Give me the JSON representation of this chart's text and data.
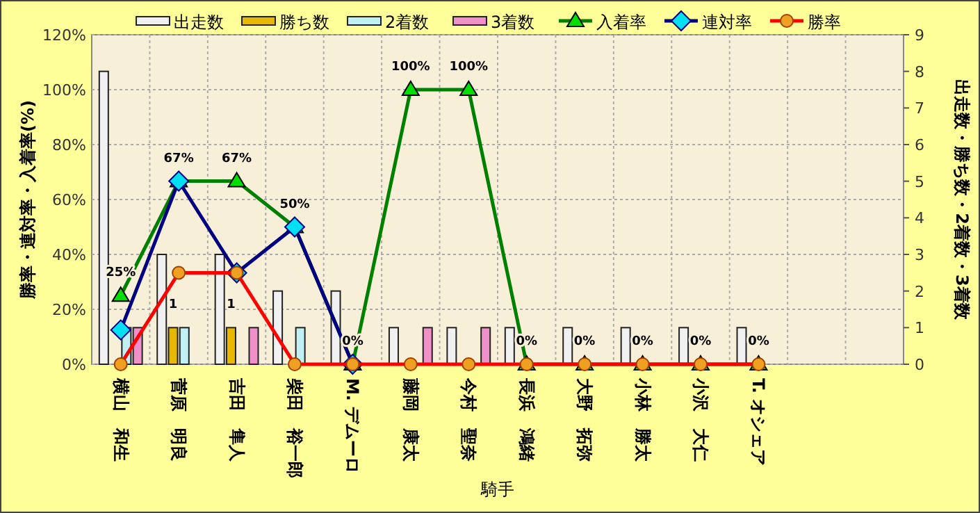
{
  "chart_data": {
    "type": "bar",
    "xlabel": "騎手",
    "ylabel": "勝率・連対率・入着率(%)",
    "y2label": "出走数・勝ち数・2着数・3着数",
    "categories": [
      "横山　和生",
      "菅原　明良",
      "吉田　隼人",
      "柴田　裕一郎",
      "M. デムーロ",
      "藤岡　康太",
      "今村　聖奈",
      "長浜　鴻緒",
      "大野　拓弥",
      "小林　勝太",
      "小沢　大仁",
      "T. オシェア",
      null,
      null
    ],
    "series": [
      {
        "name": "出走数",
        "axis": "y2",
        "color": "#f0f0f0",
        "values": [
          8,
          3,
          3,
          2,
          2,
          1,
          1,
          1,
          1,
          1,
          1,
          1,
          null,
          null
        ]
      },
      {
        "name": "勝ち数",
        "axis": "y2",
        "color": "#e6b800",
        "values": [
          0,
          1,
          1,
          0,
          0,
          0,
          0,
          0,
          0,
          0,
          0,
          0,
          null,
          null
        ],
        "value_labels": [
          null,
          "1",
          "1",
          null,
          null,
          null,
          null,
          null,
          null,
          null,
          null,
          null,
          null,
          null
        ]
      },
      {
        "name": "2着数",
        "axis": "y2",
        "color": "#c0f0f4",
        "values": [
          1,
          1,
          0,
          1,
          0,
          0,
          0,
          0,
          0,
          0,
          0,
          0,
          null,
          null
        ]
      },
      {
        "name": "3着数",
        "axis": "y2",
        "color": "#f090c8",
        "values": [
          1,
          0,
          1,
          0,
          0,
          1,
          1,
          0,
          0,
          0,
          0,
          0,
          null,
          null
        ]
      },
      {
        "name": "入着率",
        "type": "line",
        "color": "#008000",
        "marker": "triangle",
        "values": [
          25,
          66.7,
          66.7,
          50,
          0,
          100,
          100,
          0,
          0,
          0,
          0,
          0,
          null,
          null
        ],
        "value_labels": [
          "25%",
          "67%",
          "67%",
          "50%",
          "0%",
          "100%",
          "100%",
          "0%",
          "0%",
          "0%",
          "0%",
          "0%",
          null,
          null
        ]
      },
      {
        "name": "連対率",
        "type": "line",
        "color": "#000080",
        "marker": "diamond",
        "values": [
          12.5,
          66.7,
          33.3,
          50,
          0,
          null,
          null,
          null,
          null,
          null,
          null,
          null,
          null,
          null
        ]
      },
      {
        "name": "勝率",
        "type": "line",
        "color": "#ff0000",
        "marker": "circle",
        "values": [
          0,
          33.3,
          33.3,
          0,
          0,
          0,
          0,
          0,
          0,
          0,
          0,
          0,
          null,
          null
        ]
      }
    ],
    "ylim": [
      0,
      120
    ],
    "yticks": [
      {
        "value": 0,
        "label": "0%"
      },
      {
        "value": 20,
        "label": "20%"
      },
      {
        "value": 40,
        "label": "40%"
      },
      {
        "value": 60,
        "label": "60%"
      },
      {
        "value": 80,
        "label": "80%"
      },
      {
        "value": 100,
        "label": "100%"
      },
      {
        "value": 120,
        "label": "120%"
      }
    ],
    "y2lim": [
      0,
      9
    ],
    "y2ticks": [
      0,
      1,
      2,
      3,
      4,
      5,
      6,
      7,
      8,
      9
    ],
    "grid": true,
    "legend": "top"
  }
}
